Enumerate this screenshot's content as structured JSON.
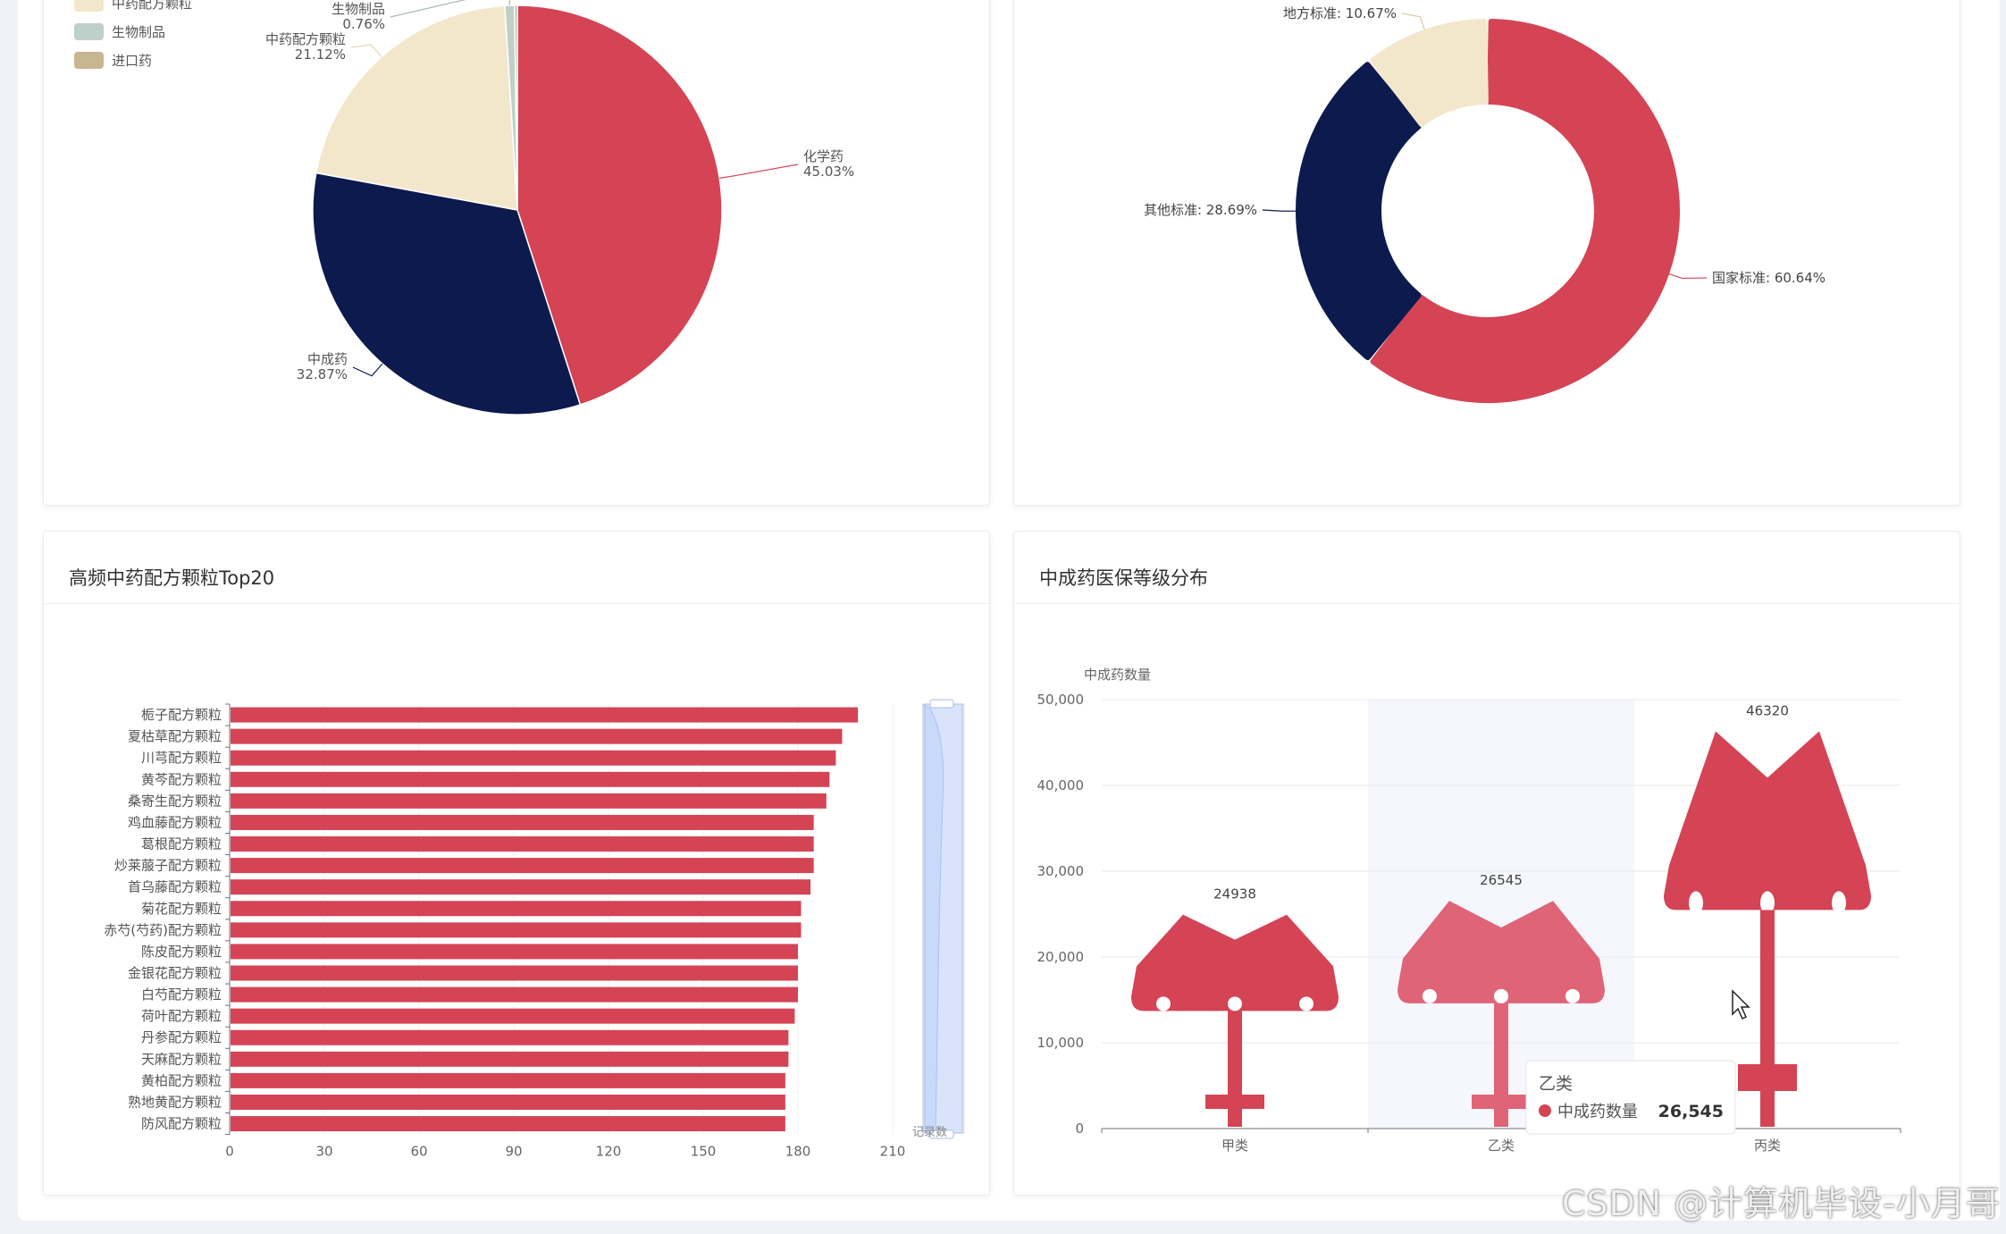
{
  "colors": {
    "red": "#d44454",
    "navy": "#0c1a4e",
    "cream": "#f3e7cb",
    "gray": "#bfcfca",
    "tan": "#c8b690",
    "pink": "#e06478"
  },
  "pie": {
    "legend": [
      "中药配方颗粒",
      "生物制品",
      "进口药"
    ],
    "slices": [
      {
        "name": "化学药",
        "value": 45.03,
        "label": "45.03%",
        "color": "#d44454"
      },
      {
        "name": "中成药",
        "value": 32.87,
        "label": "32.87%",
        "color": "#0c1a4e"
      },
      {
        "name": "中药配方颗粒",
        "value": 21.12,
        "label": "21.12%",
        "color": "#f3e7cb"
      },
      {
        "name": "生物制品",
        "value": 0.76,
        "label": "0.76%",
        "color": "#bfcfca"
      },
      {
        "name": "进口药",
        "value": 0.22,
        "label": "",
        "color": "#c8b690"
      }
    ]
  },
  "donut": {
    "slices": [
      {
        "name": "国家标准",
        "value": 60.64,
        "label": "国家标准: 60.64%",
        "color": "#d44454"
      },
      {
        "name": "其他标准",
        "value": 28.69,
        "label": "其他标准: 28.69%",
        "color": "#0c1a4e"
      },
      {
        "name": "地方标准",
        "value": 10.67,
        "label": "地方标准: 10.67%",
        "color": "#f3e7cb"
      }
    ]
  },
  "bar_card": {
    "title": "高频中药配方颗粒Top20"
  },
  "pict_card": {
    "title": "中成药医保等级分布"
  },
  "chart_data": [
    {
      "type": "pie",
      "categories": [
        "化学药",
        "中成药",
        "中药配方颗粒",
        "生物制品",
        "进口药"
      ],
      "values": [
        45.03,
        32.87,
        21.12,
        0.76,
        0.22
      ],
      "legend": "top-left"
    },
    {
      "type": "pie",
      "categories": [
        "国家标准",
        "其他标准",
        "地方标准"
      ],
      "values": [
        60.64,
        28.69,
        10.67
      ]
    },
    {
      "type": "bar",
      "orientation": "horizontal",
      "title": "高频中药配方颗粒Top20",
      "categories": [
        "栀子配方颗粒",
        "夏枯草配方颗粒",
        "川芎配方颗粒",
        "黄芩配方颗粒",
        "桑寄生配方颗粒",
        "鸡血藤配方颗粒",
        "葛根配方颗粒",
        "炒莱菔子配方颗粒",
        "首乌藤配方颗粒",
        "菊花配方颗粒",
        "赤芍(芍药)配方颗粒",
        "陈皮配方颗粒",
        "金银花配方颗粒",
        "白芍配方颗粒",
        "荷叶配方颗粒",
        "丹参配方颗粒",
        "天麻配方颗粒",
        "黄柏配方颗粒",
        "熟地黄配方颗粒",
        "防风配方颗粒"
      ],
      "values": [
        199,
        194,
        192,
        190,
        189,
        185,
        185,
        185,
        184,
        181,
        181,
        180,
        180,
        180,
        179,
        177,
        177,
        176,
        176,
        176
      ],
      "xticks": [
        "0",
        "30",
        "60",
        "90",
        "120",
        "150",
        "180",
        "210"
      ],
      "xlim": [
        0,
        210
      ],
      "datazoom_label": "记录数"
    },
    {
      "type": "bar",
      "title": "中成药医保等级分布",
      "categories": [
        "甲类",
        "乙类",
        "丙类"
      ],
      "values": [
        24938,
        26545,
        46320
      ],
      "value_labels": [
        "24938",
        "26545",
        "46320"
      ],
      "ylabel": "中成药数量",
      "yticks": [
        "0",
        "10,000",
        "20,000",
        "30,000",
        "40,000",
        "50,000"
      ],
      "ylim": [
        0,
        50000
      ],
      "tooltip": {
        "title": "乙类",
        "series": "中成药数量",
        "value": "26,545"
      }
    }
  ],
  "watermark": "CSDN @计算机毕设-小月哥"
}
